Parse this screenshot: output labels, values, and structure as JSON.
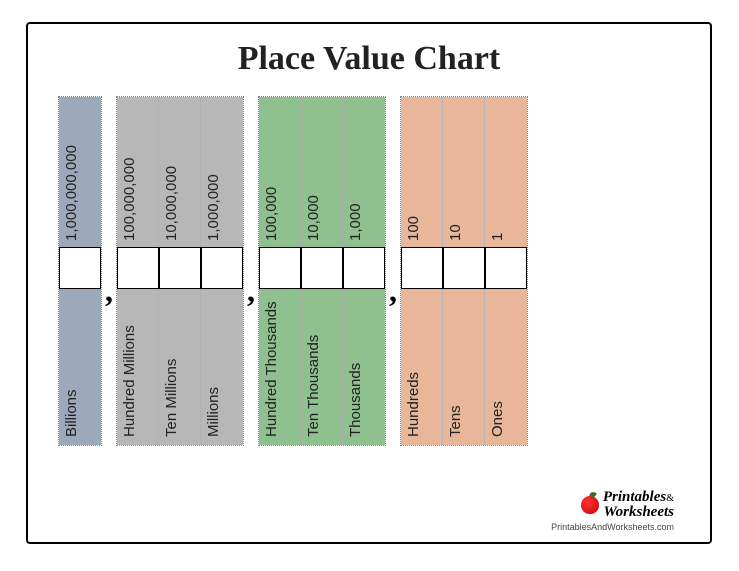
{
  "title": "Place Value Chart",
  "groups": [
    {
      "bg": "bg-blue",
      "columns": [
        {
          "value": "1,000,000,000",
          "name": "Billions"
        }
      ]
    },
    {
      "bg": "bg-gray",
      "columns": [
        {
          "value": "100,000,000",
          "name": "Hundred Millions"
        },
        {
          "value": "10,000,000",
          "name": "Ten Millions"
        },
        {
          "value": "1,000,000",
          "name": "Millions"
        }
      ]
    },
    {
      "bg": "bg-green",
      "columns": [
        {
          "value": "100,000",
          "name": "Hundred Thousands"
        },
        {
          "value": "10,000",
          "name": "Ten Thousands"
        },
        {
          "value": "1,000",
          "name": "Thousands"
        }
      ]
    },
    {
      "bg": "bg-orange",
      "columns": [
        {
          "value": "100",
          "name": "Hundreds"
        },
        {
          "value": "10",
          "name": "Tens"
        },
        {
          "value": "1",
          "name": "Ones"
        }
      ]
    }
  ],
  "separator": ",",
  "colors": {
    "blue": "#9ca9bb",
    "gray": "#b7b7b7",
    "green": "#8fc08f",
    "orange": "#e8b799",
    "border": "#000000",
    "dotted": "#888888"
  },
  "brand": {
    "line1": "Printables",
    "amp": "&",
    "line2": "Worksheets",
    "url": "PrintablesAndWorksheets.com"
  }
}
